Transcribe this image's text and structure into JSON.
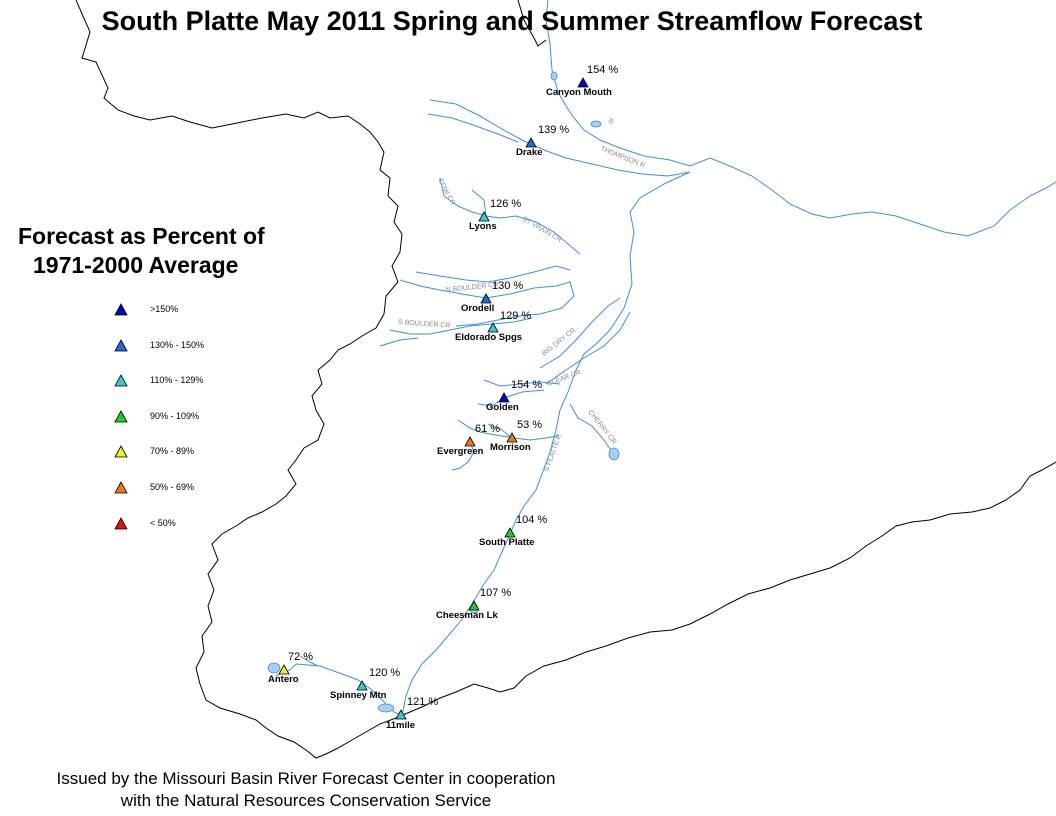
{
  "title": "South Platte May 2011 Spring and Summer Streamflow Forecast",
  "legend": {
    "title_line1": "Forecast as Percent of",
    "title_line2": "1971-2000 Average",
    "classes": [
      {
        "label": ">150%",
        "color": "#0000cc"
      },
      {
        "label": "130% - 150%",
        "color": "#2266dd"
      },
      {
        "label": "110% - 129%",
        "color": "#33cccc"
      },
      {
        "label": "90% - 109%",
        "color": "#22cc22"
      },
      {
        "label": "70% - 89%",
        "color": "#eeee22"
      },
      {
        "label": "50% - 69%",
        "color": "#ee7711"
      },
      {
        "label": "< 50%",
        "color": "#dd1111"
      }
    ]
  },
  "stations": [
    {
      "name": "Canyon Mouth",
      "percent": "154 %",
      "color": "#0000cc"
    },
    {
      "name": "Drake",
      "percent": "139 %",
      "color": "#2266dd"
    },
    {
      "name": "Lyons",
      "percent": "126 %",
      "color": "#33cccc"
    },
    {
      "name": "Orodell",
      "percent": "130 %",
      "color": "#2266dd"
    },
    {
      "name": "Eldorado Spgs",
      "percent": "129 %",
      "color": "#33cccc"
    },
    {
      "name": "Golden",
      "percent": "154 %",
      "color": "#0000cc"
    },
    {
      "name": "Evergreen",
      "percent": "61 %",
      "color": "#ee7711"
    },
    {
      "name": "Morrison",
      "percent": "53 %",
      "color": "#ee7711"
    },
    {
      "name": "South Platte",
      "percent": "104 %",
      "color": "#22cc22"
    },
    {
      "name": "Cheesman Lk",
      "percent": "107 %",
      "color": "#22cc22"
    },
    {
      "name": "Antero",
      "percent": "72 %",
      "color": "#eeee22"
    },
    {
      "name": "Spinney Mtn",
      "percent": "120 %",
      "color": "#33cccc"
    },
    {
      "name": "11mile",
      "percent": "121 %",
      "color": "#33cccc"
    }
  ],
  "river_labels": [
    "THOMPSON R",
    "COW CR",
    "ST VRAIN CR",
    "N BOULDER CR",
    "S BOULDER CR",
    "BIG DRY CR",
    "CLEAR CR",
    "CHERRY CR",
    "S PLATTE R",
    "B"
  ],
  "footer": {
    "line1": "Issued by the Missouri Basin River Forecast Center in cooperation",
    "line2": "with the Natural Resources Conservation Service"
  },
  "colors": {
    "river": "#3b8fe6",
    "lake": "#a8cfee",
    "boundary": "#000000"
  }
}
